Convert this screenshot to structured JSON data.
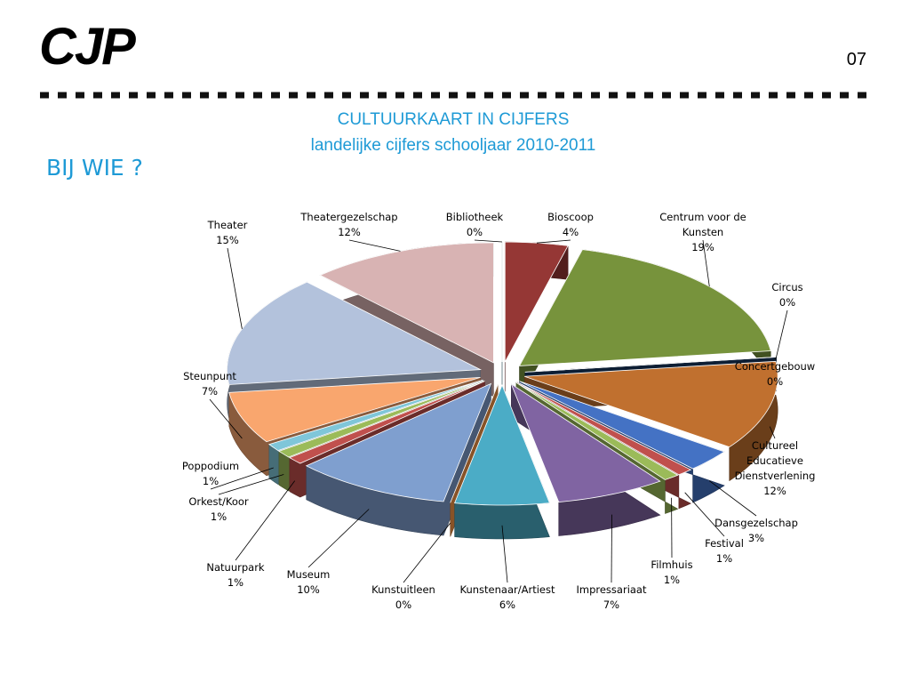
{
  "logo": "CJP",
  "page_number": "07",
  "heading": "BIJ WIE ?",
  "chart_data": {
    "type": "pie",
    "title": "CULTUURKAART IN CIJFERS",
    "subtitle": "landelijke cijfers schooljaar 2010-2011",
    "categories": [
      "Bibliotheek",
      "Bioscoop",
      "Centrum voor de Kunsten",
      "Circus",
      "Concertgebouw",
      "Cultureel Educatieve Dienstverlening",
      "Dansgezelschap",
      "Festival",
      "Filmhuis",
      "Impressariaat",
      "Kunstenaar/Artiest",
      "Kunstuitleen",
      "Museum",
      "Natuurpark",
      "Orkest/Koor",
      "Poppodium",
      "Steunpunt",
      "Theater",
      "Theatergezelschap"
    ],
    "values": [
      0,
      4,
      19,
      0,
      0,
      12,
      3,
      1,
      1,
      7,
      6,
      0,
      10,
      1,
      1,
      1,
      7,
      15,
      12
    ],
    "value_labels": [
      "0%",
      "4%",
      "19%",
      "0%",
      "0%",
      "12%",
      "3%",
      "1%",
      "1%",
      "7%",
      "6%",
      "0%",
      "10%",
      "1%",
      "1%",
      "1%",
      "7%",
      "15%",
      "12%"
    ],
    "colors": [
      "#31859c",
      "#953735",
      "#77933c",
      "#1f4e79",
      "#17375e",
      "#c0702f",
      "#4472c4",
      "#c0504d",
      "#9bbb59",
      "#8064a2",
      "#4bacc6",
      "#f79646",
      "#7f9fcf",
      "#c0504d",
      "#9bbb59",
      "#7fc6d9",
      "#f9a66e",
      "#b3c2dc",
      "#d8b3b3"
    ]
  }
}
